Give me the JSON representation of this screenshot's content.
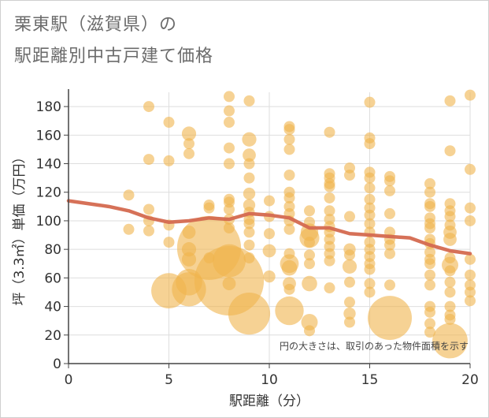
{
  "title_line1": "栗東駅（滋賀県）の",
  "title_line2": "駅距離別中古戸建て価格",
  "colors": {
    "bubble": "#f0b44c",
    "trend": "#d4694f",
    "grid": "#dedede",
    "axis": "#444444",
    "text_title": "#6b6b6b"
  },
  "chart_data": {
    "type": "scatter",
    "title": "栗東駅（滋賀県）の駅距離別中古戸建て価格",
    "xlabel": "駅距離（分）",
    "ylabel": "坪（3.3㎡）単価（万円）",
    "xlim": [
      0,
      20
    ],
    "ylim": [
      0,
      190
    ],
    "x_ticks": [
      0,
      5,
      10,
      15,
      20
    ],
    "y_ticks": [
      0,
      20,
      40,
      60,
      80,
      100,
      120,
      140,
      160,
      180
    ],
    "grid": true,
    "note": "円の大きさは、取引のあった物件面積を示す",
    "bubble_size_unit": "relative floor area (1 = smallest circle)",
    "points": [
      {
        "x": 3,
        "y": 118,
        "s": 1
      },
      {
        "x": 3,
        "y": 94,
        "s": 1
      },
      {
        "x": 4,
        "y": 180,
        "s": 1
      },
      {
        "x": 4,
        "y": 143,
        "s": 1
      },
      {
        "x": 4,
        "y": 108,
        "s": 1
      },
      {
        "x": 4,
        "y": 100,
        "s": 1
      },
      {
        "x": 4,
        "y": 93,
        "s": 1
      },
      {
        "x": 5,
        "y": 169,
        "s": 1
      },
      {
        "x": 5,
        "y": 142,
        "s": 1
      },
      {
        "x": 5,
        "y": 97,
        "s": 1
      },
      {
        "x": 5,
        "y": 85,
        "s": 1
      },
      {
        "x": 5,
        "y": 51,
        "s": 3.2
      },
      {
        "x": 6,
        "y": 161,
        "s": 1.3
      },
      {
        "x": 6,
        "y": 154,
        "s": 1
      },
      {
        "x": 6,
        "y": 147,
        "s": 1
      },
      {
        "x": 6,
        "y": 92,
        "s": 1.2
      },
      {
        "x": 6,
        "y": 80,
        "s": 1.3
      },
      {
        "x": 6,
        "y": 73,
        "s": 1.3
      },
      {
        "x": 6,
        "y": 57,
        "s": 2.4
      },
      {
        "x": 6,
        "y": 52,
        "s": 3.1
      },
      {
        "x": 7,
        "y": 111,
        "s": 1
      },
      {
        "x": 7,
        "y": 109,
        "s": 1
      },
      {
        "x": 7,
        "y": 81,
        "s": 5.8
      },
      {
        "x": 7,
        "y": 74,
        "s": 1
      },
      {
        "x": 8,
        "y": 187,
        "s": 1
      },
      {
        "x": 8,
        "y": 177,
        "s": 1
      },
      {
        "x": 8,
        "y": 169,
        "s": 1
      },
      {
        "x": 8,
        "y": 151,
        "s": 1
      },
      {
        "x": 8,
        "y": 140,
        "s": 1
      },
      {
        "x": 8,
        "y": 115,
        "s": 1
      },
      {
        "x": 8,
        "y": 113,
        "s": 1
      },
      {
        "x": 8,
        "y": 108,
        "s": 1
      },
      {
        "x": 8,
        "y": 101,
        "s": 1
      },
      {
        "x": 8,
        "y": 95,
        "s": 1
      },
      {
        "x": 8,
        "y": 72,
        "s": 3
      },
      {
        "x": 8,
        "y": 58,
        "s": 6.3
      },
      {
        "x": 8,
        "y": 56,
        "s": 1.2
      },
      {
        "x": 9,
        "y": 184,
        "s": 1
      },
      {
        "x": 9,
        "y": 157,
        "s": 1.3
      },
      {
        "x": 9,
        "y": 146,
        "s": 1.2
      },
      {
        "x": 9,
        "y": 140,
        "s": 1
      },
      {
        "x": 9,
        "y": 130,
        "s": 1
      },
      {
        "x": 9,
        "y": 119,
        "s": 1.1
      },
      {
        "x": 9,
        "y": 111,
        "s": 1.1
      },
      {
        "x": 9,
        "y": 106,
        "s": 1
      },
      {
        "x": 9,
        "y": 101,
        "s": 1
      },
      {
        "x": 9,
        "y": 98,
        "s": 1
      },
      {
        "x": 9,
        "y": 92,
        "s": 1
      },
      {
        "x": 9,
        "y": 83,
        "s": 1
      },
      {
        "x": 9,
        "y": 74,
        "s": 1
      },
      {
        "x": 9,
        "y": 35,
        "s": 3.8
      },
      {
        "x": 10,
        "y": 114,
        "s": 1
      },
      {
        "x": 10,
        "y": 103,
        "s": 1
      },
      {
        "x": 10,
        "y": 91,
        "s": 1
      },
      {
        "x": 10,
        "y": 79,
        "s": 1.2
      },
      {
        "x": 10,
        "y": 61,
        "s": 1.1
      },
      {
        "x": 11,
        "y": 166,
        "s": 1
      },
      {
        "x": 11,
        "y": 164,
        "s": 1
      },
      {
        "x": 11,
        "y": 157,
        "s": 1
      },
      {
        "x": 11,
        "y": 150,
        "s": 1
      },
      {
        "x": 11,
        "y": 132,
        "s": 1
      },
      {
        "x": 11,
        "y": 120,
        "s": 1
      },
      {
        "x": 11,
        "y": 116,
        "s": 1
      },
      {
        "x": 11,
        "y": 110,
        "s": 1
      },
      {
        "x": 11,
        "y": 105,
        "s": 1
      },
      {
        "x": 11,
        "y": 100,
        "s": 1
      },
      {
        "x": 11,
        "y": 94,
        "s": 1
      },
      {
        "x": 11,
        "y": 77,
        "s": 1
      },
      {
        "x": 11,
        "y": 70,
        "s": 1.7
      },
      {
        "x": 11,
        "y": 67,
        "s": 1.4
      },
      {
        "x": 11,
        "y": 56,
        "s": 1.2
      },
      {
        "x": 11,
        "y": 52,
        "s": 1
      },
      {
        "x": 11,
        "y": 37,
        "s": 2.6
      },
      {
        "x": 12,
        "y": 107,
        "s": 1
      },
      {
        "x": 12,
        "y": 99,
        "s": 1
      },
      {
        "x": 12,
        "y": 92,
        "s": 1.6
      },
      {
        "x": 12,
        "y": 88,
        "s": 1.8
      },
      {
        "x": 12,
        "y": 85,
        "s": 1
      },
      {
        "x": 12,
        "y": 76,
        "s": 1
      },
      {
        "x": 12,
        "y": 70,
        "s": 1
      },
      {
        "x": 12,
        "y": 56,
        "s": 1.4
      },
      {
        "x": 12,
        "y": 29,
        "s": 1.5
      },
      {
        "x": 12,
        "y": 23,
        "s": 1
      },
      {
        "x": 13,
        "y": 162,
        "s": 1
      },
      {
        "x": 13,
        "y": 133,
        "s": 1
      },
      {
        "x": 13,
        "y": 130,
        "s": 1
      },
      {
        "x": 13,
        "y": 126,
        "s": 1
      },
      {
        "x": 13,
        "y": 124,
        "s": 1
      },
      {
        "x": 13,
        "y": 116,
        "s": 1
      },
      {
        "x": 13,
        "y": 107,
        "s": 1
      },
      {
        "x": 13,
        "y": 101,
        "s": 1
      },
      {
        "x": 13,
        "y": 96,
        "s": 1
      },
      {
        "x": 13,
        "y": 92,
        "s": 1
      },
      {
        "x": 13,
        "y": 87,
        "s": 1
      },
      {
        "x": 13,
        "y": 82,
        "s": 1
      },
      {
        "x": 13,
        "y": 77,
        "s": 1
      },
      {
        "x": 13,
        "y": 72,
        "s": 1
      },
      {
        "x": 13,
        "y": 53,
        "s": 1
      },
      {
        "x": 14,
        "y": 137,
        "s": 1
      },
      {
        "x": 14,
        "y": 132,
        "s": 1
      },
      {
        "x": 14,
        "y": 103,
        "s": 1
      },
      {
        "x": 14,
        "y": 80,
        "s": 1.1
      },
      {
        "x": 14,
        "y": 76,
        "s": 1
      },
      {
        "x": 14,
        "y": 68,
        "s": 1.3
      },
      {
        "x": 14,
        "y": 57,
        "s": 1
      },
      {
        "x": 14,
        "y": 43,
        "s": 1
      },
      {
        "x": 14,
        "y": 35,
        "s": 1.1
      },
      {
        "x": 14,
        "y": 29,
        "s": 1
      },
      {
        "x": 15,
        "y": 183,
        "s": 1
      },
      {
        "x": 15,
        "y": 158,
        "s": 1
      },
      {
        "x": 15,
        "y": 154,
        "s": 1
      },
      {
        "x": 15,
        "y": 134,
        "s": 1
      },
      {
        "x": 15,
        "y": 130,
        "s": 1
      },
      {
        "x": 15,
        "y": 123,
        "s": 1
      },
      {
        "x": 15,
        "y": 115,
        "s": 1
      },
      {
        "x": 15,
        "y": 109,
        "s": 1
      },
      {
        "x": 15,
        "y": 104,
        "s": 1
      },
      {
        "x": 15,
        "y": 98,
        "s": 1
      },
      {
        "x": 15,
        "y": 92,
        "s": 1
      },
      {
        "x": 15,
        "y": 85,
        "s": 1
      },
      {
        "x": 15,
        "y": 80,
        "s": 1
      },
      {
        "x": 15,
        "y": 75,
        "s": 1
      },
      {
        "x": 15,
        "y": 70,
        "s": 1
      },
      {
        "x": 15,
        "y": 66,
        "s": 1
      },
      {
        "x": 15,
        "y": 56,
        "s": 1
      },
      {
        "x": 15,
        "y": 50,
        "s": 1
      },
      {
        "x": 16,
        "y": 131,
        "s": 1
      },
      {
        "x": 16,
        "y": 128,
        "s": 1
      },
      {
        "x": 16,
        "y": 121,
        "s": 1
      },
      {
        "x": 16,
        "y": 105,
        "s": 1
      },
      {
        "x": 16,
        "y": 92,
        "s": 1
      },
      {
        "x": 16,
        "y": 87,
        "s": 1
      },
      {
        "x": 16,
        "y": 83,
        "s": 1
      },
      {
        "x": 16,
        "y": 77,
        "s": 1
      },
      {
        "x": 16,
        "y": 55,
        "s": 1
      },
      {
        "x": 16,
        "y": 32,
        "s": 4
      },
      {
        "x": 18,
        "y": 126,
        "s": 1
      },
      {
        "x": 18,
        "y": 120,
        "s": 1
      },
      {
        "x": 18,
        "y": 112,
        "s": 1
      },
      {
        "x": 18,
        "y": 110,
        "s": 1
      },
      {
        "x": 18,
        "y": 102,
        "s": 1
      },
      {
        "x": 18,
        "y": 98,
        "s": 1
      },
      {
        "x": 18,
        "y": 95,
        "s": 1
      },
      {
        "x": 18,
        "y": 87,
        "s": 1
      },
      {
        "x": 18,
        "y": 84,
        "s": 1
      },
      {
        "x": 18,
        "y": 78,
        "s": 1
      },
      {
        "x": 18,
        "y": 73,
        "s": 1
      },
      {
        "x": 18,
        "y": 70,
        "s": 1
      },
      {
        "x": 18,
        "y": 62,
        "s": 1
      },
      {
        "x": 18,
        "y": 55,
        "s": 1
      },
      {
        "x": 18,
        "y": 40,
        "s": 1
      },
      {
        "x": 18,
        "y": 36,
        "s": 1
      },
      {
        "x": 18,
        "y": 28,
        "s": 1
      },
      {
        "x": 18,
        "y": 22,
        "s": 1
      },
      {
        "x": 19,
        "y": 184,
        "s": 1
      },
      {
        "x": 19,
        "y": 149,
        "s": 1
      },
      {
        "x": 19,
        "y": 112,
        "s": 1
      },
      {
        "x": 19,
        "y": 107,
        "s": 1
      },
      {
        "x": 19,
        "y": 103,
        "s": 1
      },
      {
        "x": 19,
        "y": 97,
        "s": 1
      },
      {
        "x": 19,
        "y": 92,
        "s": 1.2
      },
      {
        "x": 19,
        "y": 87,
        "s": 1.2
      },
      {
        "x": 19,
        "y": 74,
        "s": 1
      },
      {
        "x": 19,
        "y": 69,
        "s": 1.5
      },
      {
        "x": 19,
        "y": 65,
        "s": 1
      },
      {
        "x": 19,
        "y": 57,
        "s": 1
      },
      {
        "x": 19,
        "y": 50,
        "s": 1
      },
      {
        "x": 19,
        "y": 40,
        "s": 1
      },
      {
        "x": 19,
        "y": 34,
        "s": 1
      },
      {
        "x": 19,
        "y": 31,
        "s": 1
      },
      {
        "x": 19,
        "y": 16,
        "s": 3.2
      },
      {
        "x": 20,
        "y": 188,
        "s": 1
      },
      {
        "x": 20,
        "y": 136,
        "s": 1
      },
      {
        "x": 20,
        "y": 109,
        "s": 1
      },
      {
        "x": 20,
        "y": 100,
        "s": 1
      },
      {
        "x": 20,
        "y": 73,
        "s": 1
      },
      {
        "x": 20,
        "y": 62,
        "s": 1
      },
      {
        "x": 20,
        "y": 55,
        "s": 1
      },
      {
        "x": 20,
        "y": 50,
        "s": 1
      },
      {
        "x": 20,
        "y": 44,
        "s": 1
      }
    ],
    "trend_line": {
      "x": [
        0,
        1,
        2,
        3,
        4,
        5,
        6,
        7,
        8,
        9,
        10,
        11,
        12,
        13,
        14,
        15,
        16,
        17,
        18,
        19,
        20
      ],
      "y": [
        114,
        112,
        110,
        107,
        102,
        99,
        100,
        102,
        101,
        105,
        104,
        102,
        95,
        95,
        91,
        90,
        89,
        88,
        83,
        79,
        77
      ]
    }
  }
}
